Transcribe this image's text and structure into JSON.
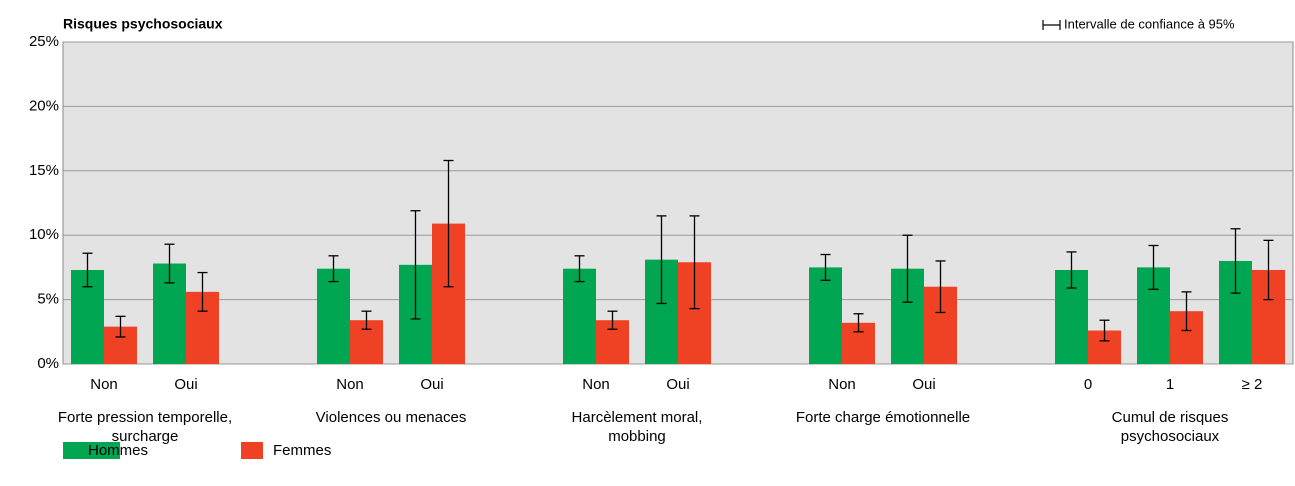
{
  "chart_data": {
    "type": "bar",
    "title": "Risques psychosociaux",
    "annotation": "Intervalle de confiance à 95%",
    "groups": [
      {
        "label": "Forte pression temporelle, surcharge",
        "categories": [
          "Non",
          "Oui"
        ]
      },
      {
        "label": "Violences ou menaces",
        "categories": [
          "Non",
          "Oui"
        ]
      },
      {
        "label": "Harcèlement moral, mobbing",
        "categories": [
          "Non",
          "Oui"
        ]
      },
      {
        "label": "Forte charge émotionnelle",
        "categories": [
          "Non",
          "Oui"
        ]
      },
      {
        "label": "Cumul de risques psychosociaux",
        "categories": [
          "0",
          "1",
          "≥ 2"
        ]
      }
    ],
    "series": [
      {
        "name": "Hommes",
        "color": "#00a651",
        "values": [
          7.3,
          7.8,
          7.4,
          7.7,
          7.4,
          8.1,
          7.5,
          7.4,
          7.3,
          7.5,
          8.0
        ],
        "errors": [
          1.3,
          1.5,
          1.0,
          4.2,
          1.0,
          3.4,
          1.0,
          2.6,
          1.4,
          1.7,
          2.5
        ]
      },
      {
        "name": "Femmes",
        "color": "#ef4123",
        "values": [
          2.9,
          5.6,
          3.4,
          10.9,
          3.4,
          7.9,
          3.2,
          6.0,
          2.6,
          4.1,
          7.3
        ],
        "errors": [
          0.8,
          1.5,
          0.7,
          4.9,
          0.7,
          3.6,
          0.7,
          2.0,
          0.8,
          1.5,
          2.3
        ]
      }
    ],
    "ylim": [
      0,
      25
    ],
    "yticks": [
      {
        "value": 0,
        "label": "0%"
      },
      {
        "value": 5,
        "label": "5%"
      },
      {
        "value": 10,
        "label": "10%"
      },
      {
        "value": 15,
        "label": "15%"
      },
      {
        "value": 20,
        "label": "20%"
      },
      {
        "value": 25,
        "label": "25%"
      }
    ],
    "grid": true
  }
}
